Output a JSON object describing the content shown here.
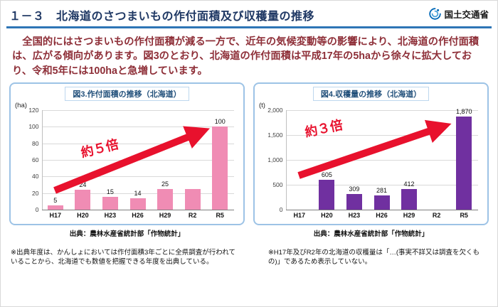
{
  "header": {
    "title": "１－３　北海道のさつまいもの作付面積及び収穫量の推移",
    "logo_text": "国土交通省"
  },
  "intro": "　全国的にはさつまいもの作付面積が減る一方で、近年の気候変動等の影響により、北海道の作付面積は、広がる傾向があります。図3のとおり、北海道の作付面積は平成17年の5haから徐々に拡大しており、令和5年には100haと急増しています。",
  "colors": {
    "accent_blue": "#2e75b6",
    "title_navy": "#1f3864",
    "intro_red": "#8e2f38",
    "arrow_red": "#e8112d",
    "panel_border": "#9dc3e6",
    "logo_blue": "#0068b7"
  },
  "chart_data": [
    {
      "type": "bar",
      "title": "図3.作付面積の推移（北海道）",
      "unit": "(ha)",
      "categories": [
        "H17",
        "H20",
        "H23",
        "H26",
        "H29",
        "R2",
        "R5"
      ],
      "values": [
        5,
        24,
        15,
        14,
        25,
        25,
        100
      ],
      "labels": [
        "5",
        "24",
        "15",
        "14",
        "25",
        "",
        "100"
      ],
      "ylim": [
        0,
        120
      ],
      "yticks": [
        "0",
        "20",
        "40",
        "60",
        "80",
        "100",
        "120"
      ],
      "bar_color": "#f08cb4",
      "annotation": "約５倍",
      "source": "出典：農林水産省統計部「作物統計」"
    },
    {
      "type": "bar",
      "title": "図4.収穫量の推移（北海道）",
      "unit": "(t)",
      "categories": [
        "H17",
        "H20",
        "H23",
        "H26",
        "H29",
        "R2",
        "R5"
      ],
      "values": [
        0,
        605,
        309,
        281,
        412,
        0,
        1870
      ],
      "labels": [
        "",
        "605",
        "309",
        "281",
        "412",
        "",
        "1,870"
      ],
      "ylim": [
        0,
        2000
      ],
      "yticks": [
        "0",
        "500",
        "1,000",
        "1,500",
        "2,000"
      ],
      "bar_color": "#7030a0",
      "annotation": "約３倍",
      "source": "出典：農林水産省統計部「作物統計」"
    }
  ],
  "footnotes": {
    "left": "※出典年度は、かんしょにおいては作付面積3年ごとに全県調査が行われていることから、北海道でも数値を把握できる年度を出典している。",
    "right": "※H17年及びR2年の北海道の収穫量は「…(事実不詳又は調査を欠くもの)」であるため表示していない。"
  }
}
